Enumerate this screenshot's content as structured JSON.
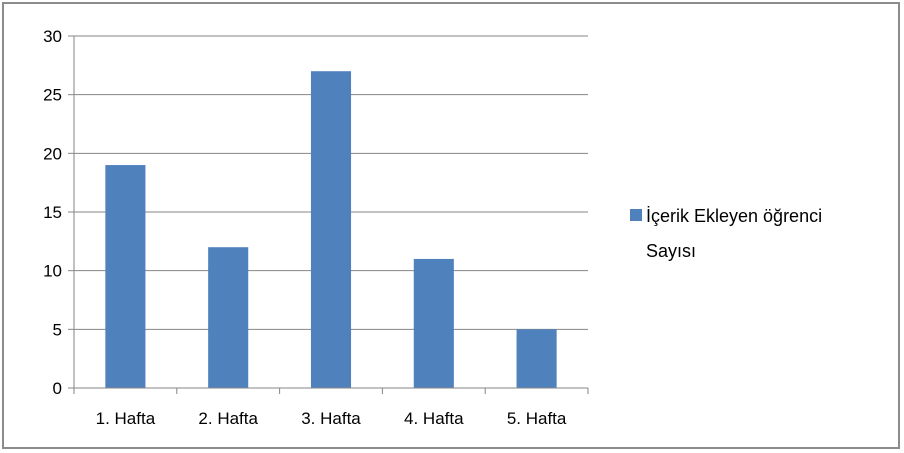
{
  "chart_data": {
    "type": "bar",
    "categories": [
      "1. Hafta",
      "2. Hafta",
      "3. Hafta",
      "4. Hafta",
      "5. Hafta"
    ],
    "series": [
      {
        "name": "İçerik Ekleyen öğrenci Sayısı",
        "values": [
          19,
          12,
          27,
          11,
          5
        ],
        "color": "#4f81bd"
      }
    ],
    "legend": {
      "placement": "right",
      "lines": [
        "İçerik Ekleyen öğrenci",
        "Sayısı"
      ]
    },
    "ylim": [
      0,
      30
    ],
    "yticks": [
      0,
      5,
      10,
      15,
      20,
      25,
      30
    ],
    "grid": true,
    "colors": {
      "bar": "#4f81bd",
      "gridline": "#868686",
      "axis": "#868686",
      "frame": "#8c8c8c"
    }
  }
}
